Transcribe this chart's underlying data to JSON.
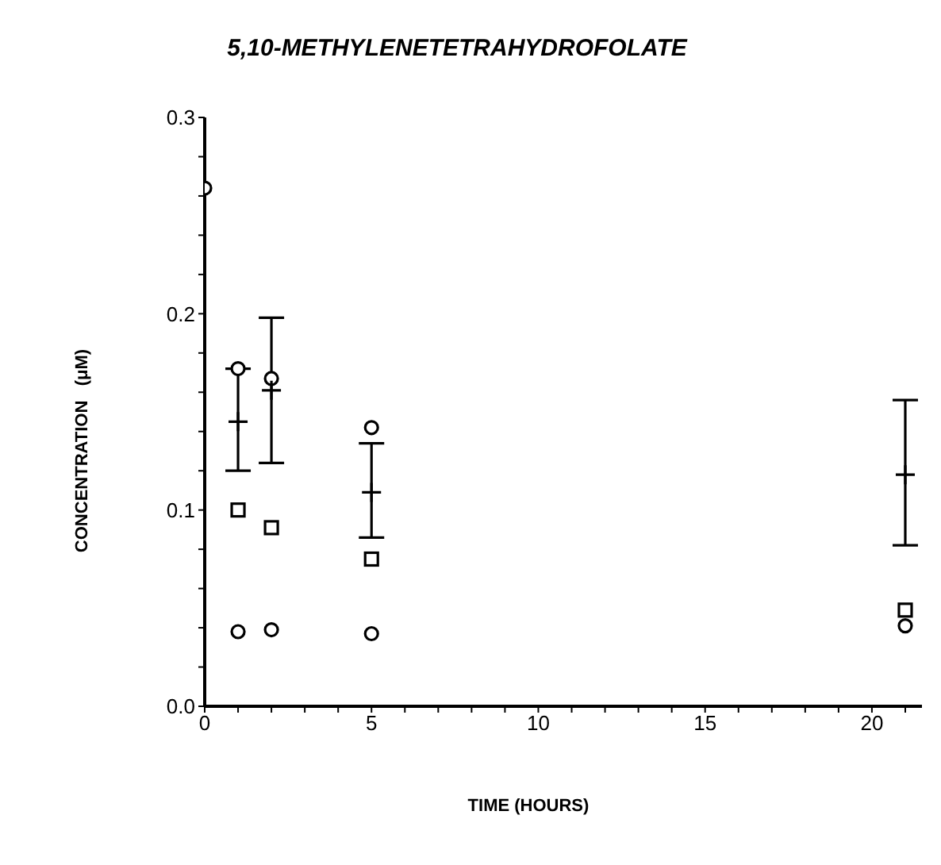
{
  "chart_data": {
    "type": "scatter",
    "title": "5,10-METHYLENETETRAHYDROFOLATE",
    "xlabel": "TIME (HOURS)",
    "ylabel": "CONCENTRATION   (μM)",
    "xlim": [
      0,
      21.5
    ],
    "ylim": [
      0,
      0.3
    ],
    "xticks": [
      0,
      {
        "value": 1,
        "label": null
      },
      {
        "value": 2,
        "label": null
      },
      {
        "value": 3,
        "label": null
      },
      {
        "value": 4,
        "label": null
      },
      5,
      {
        "value": 6,
        "label": null
      },
      {
        "value": 7,
        "label": null
      },
      {
        "value": 8,
        "label": null
      },
      {
        "value": 9,
        "label": null
      },
      10,
      {
        "value": 11,
        "label": null
      },
      {
        "value": 12,
        "label": null
      },
      {
        "value": 13,
        "label": null
      },
      {
        "value": 14,
        "label": null
      },
      15,
      {
        "value": 16,
        "label": null
      },
      {
        "value": 17,
        "label": null
      },
      {
        "value": 18,
        "label": null
      },
      {
        "value": 19,
        "label": null
      },
      20,
      {
        "value": 21,
        "label": null
      }
    ],
    "yticks": [
      {
        "value": 0,
        "label": "0.0"
      },
      {
        "value": 0.02,
        "label": null
      },
      {
        "value": 0.04,
        "label": null
      },
      {
        "value": 0.06,
        "label": null
      },
      {
        "value": 0.08,
        "label": null
      },
      0.1,
      {
        "value": 0.12,
        "label": null
      },
      {
        "value": 0.14,
        "label": null
      },
      {
        "value": 0.16,
        "label": null
      },
      {
        "value": 0.18,
        "label": null
      },
      0.2,
      {
        "value": 0.22,
        "label": null
      },
      {
        "value": 0.24,
        "label": null
      },
      {
        "value": 0.26,
        "label": null
      },
      {
        "value": 0.28,
        "label": null
      },
      0.3
    ],
    "grid": false,
    "legend": false,
    "series": [
      {
        "color": "#000000",
        "marker": "circle",
        "x": [
          1,
          2,
          5
        ],
        "values": [
          0.172,
          0.167,
          0.142
        ]
      },
      {
        "color": "#000000",
        "marker": "square",
        "x": [
          1,
          2,
          5,
          21
        ],
        "values": [
          0.1,
          0.091,
          0.075,
          0.049
        ]
      },
      {
        "color": "#000000",
        "marker": "circle",
        "x": [
          0,
          1,
          2,
          5,
          21
        ],
        "values": [
          0.264,
          0.038,
          0.039,
          0.037,
          0.041
        ]
      },
      {
        "color": "#000000",
        "marker": "cross",
        "x": [
          1,
          2,
          5,
          21
        ],
        "values": [
          0.145,
          0.161,
          0.109,
          0.118
        ],
        "errors": [
          [
            0.12,
            0.172
          ],
          [
            0.124,
            0.198
          ],
          [
            0.086,
            0.134
          ],
          [
            0.082,
            0.156
          ]
        ]
      }
    ]
  }
}
